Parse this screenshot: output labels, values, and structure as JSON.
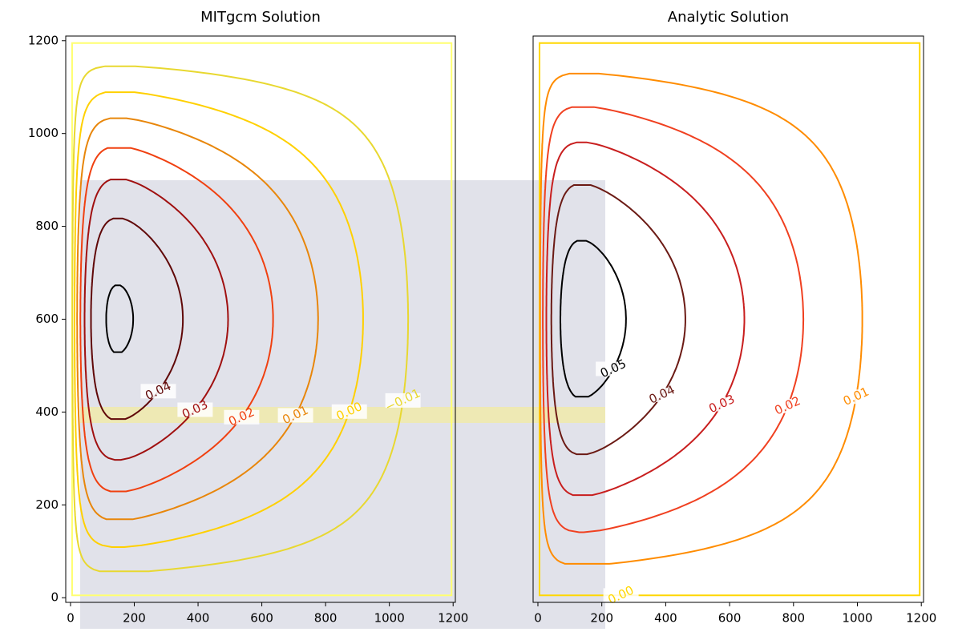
{
  "chart_data": [
    {
      "type": "contour",
      "title": "MITgcm  Solution",
      "xlim": [
        -15,
        1207
      ],
      "ylim": [
        -10,
        1210
      ],
      "xticks": [
        0,
        200,
        400,
        600,
        800,
        1000,
        1200
      ],
      "yticks": [
        0,
        200,
        400,
        600,
        800,
        1000,
        1200
      ],
      "levels": [
        -0.02,
        -0.01,
        0.0,
        0.01,
        0.02,
        0.03,
        0.04,
        0.05
      ],
      "level_labels": [
        null,
        "−0.01",
        "0.00",
        "0.01",
        "0.02",
        "0.03",
        "0.04",
        null
      ],
      "colors": [
        "#ffff70",
        "#e8d830",
        "#ffd000",
        "#e8860a",
        "#f04010",
        "#a01010",
        "#600808",
        "#000000"
      ]
    },
    {
      "type": "contour",
      "title": "Analytic Solution",
      "xlim": [
        -15,
        1207
      ],
      "ylim": [
        -10,
        1210
      ],
      "xticks": [
        0,
        200,
        400,
        600,
        800,
        1000,
        1200
      ],
      "levels": [
        0.0,
        0.01,
        0.02,
        0.03,
        0.04,
        0.05
      ],
      "level_labels": [
        "0.00",
        "0.01",
        "0.02",
        "0.03",
        "0.04",
        "0.05"
      ],
      "colors": [
        "#ffd700",
        "#ff8c00",
        "#f04020",
        "#c81e1e",
        "#6b1a14",
        "#000000"
      ]
    }
  ]
}
